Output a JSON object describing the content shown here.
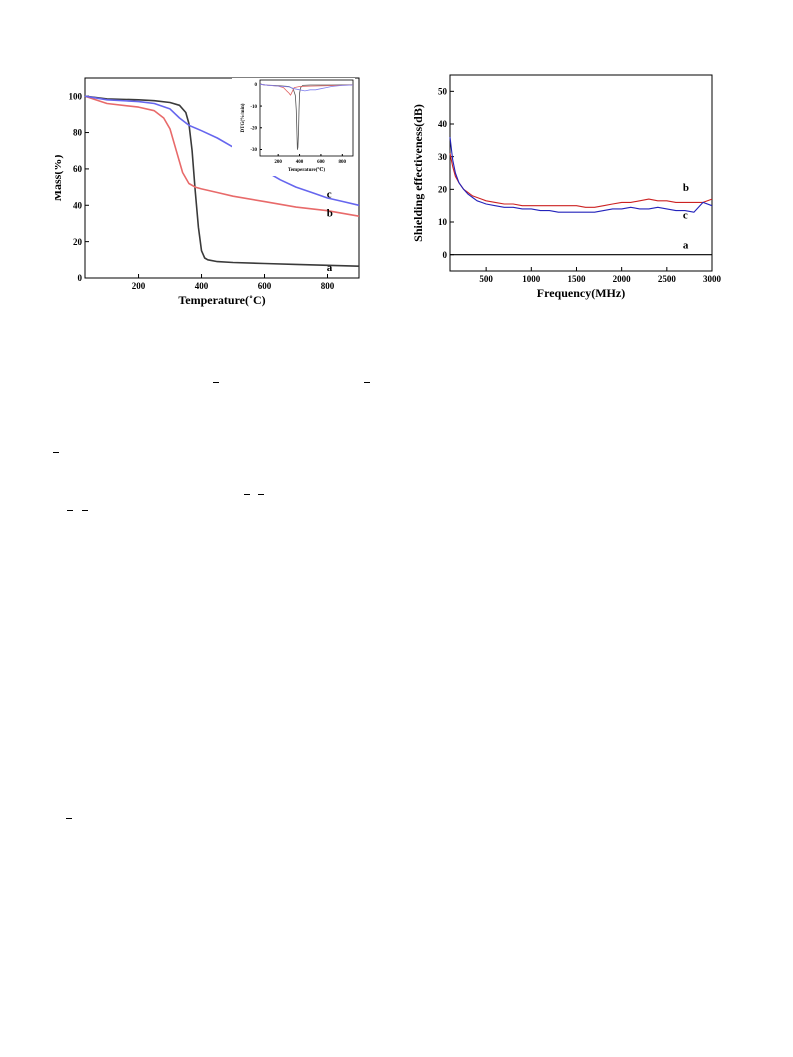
{
  "chart_data": [
    {
      "type": "line",
      "xlabel": "Temperature(˚C)",
      "ylabel": "Mass(%)",
      "xlim": [
        30,
        900
      ],
      "ylim": [
        0,
        110
      ],
      "xticks": [
        200,
        400,
        600,
        800
      ],
      "yticks": [
        0,
        20,
        40,
        60,
        80,
        100
      ],
      "grid": false,
      "series": [
        {
          "name": "a",
          "color": "#3a3a3a",
          "x": [
            30,
            100,
            200,
            250,
            300,
            330,
            350,
            360,
            370,
            380,
            390,
            400,
            410,
            420,
            450,
            500,
            600,
            700,
            800,
            900
          ],
          "y": [
            100,
            98.5,
            98,
            97.5,
            96.5,
            95,
            91,
            85,
            70,
            48,
            28,
            15,
            11,
            10,
            9,
            8.5,
            8,
            7.5,
            7,
            6.5
          ]
        },
        {
          "name": "b",
          "color": "#e86a6a",
          "x": [
            30,
            100,
            200,
            250,
            280,
            300,
            320,
            340,
            360,
            380,
            400,
            450,
            500,
            600,
            700,
            800,
            900
          ],
          "y": [
            100,
            96,
            94,
            92,
            88,
            82,
            70,
            58,
            52,
            50,
            49,
            47,
            45,
            42,
            39,
            37,
            34
          ]
        },
        {
          "name": "c",
          "color": "#6666ee",
          "x": [
            30,
            100,
            200,
            250,
            300,
            330,
            360,
            400,
            450,
            500,
            550,
            600,
            650,
            700,
            750,
            800,
            850,
            900
          ],
          "y": [
            100,
            98,
            97,
            96,
            93,
            88,
            84,
            81,
            77,
            72,
            65,
            59,
            54,
            50,
            47,
            44,
            42,
            40
          ]
        }
      ],
      "inset": {
        "type": "line",
        "xlabel": "Temperature(℃)",
        "ylabel": "DTG(%/min)",
        "xlim": [
          30,
          900
        ],
        "ylim": [
          -33,
          2
        ],
        "xticks": [
          200,
          400,
          600,
          800
        ],
        "yticks": [
          0,
          -10,
          -20,
          -30
        ],
        "series": [
          {
            "name": "a",
            "color": "#555555",
            "x": [
              30,
              100,
              200,
              300,
              340,
              360,
              370,
              375,
              380,
              385,
              390,
              395,
              400,
              410,
              430,
              500,
              700,
              900
            ],
            "y": [
              0,
              -0.4,
              -0.6,
              -1,
              -2,
              -5,
              -12,
              -22,
              -30,
              -29,
              -22,
              -12,
              -4,
              -1.5,
              -0.5,
              -0.3,
              -0.3,
              -0.2
            ]
          },
          {
            "name": "b",
            "color": "#e06060",
            "x": [
              30,
              100,
              200,
              250,
              280,
              300,
              315,
              330,
              350,
              400,
              500,
              700,
              900
            ],
            "y": [
              0,
              -0.4,
              -0.8,
              -1.5,
              -3,
              -4,
              -5,
              -3.5,
              -1.5,
              -1,
              -0.8,
              -0.6,
              -0.3
            ]
          },
          {
            "name": "c",
            "color": "#8080ee",
            "x": [
              30,
              100,
              200,
              300,
              350,
              400,
              450,
              500,
              550,
              600,
              650,
              700,
              800,
              900
            ],
            "y": [
              0,
              -0.4,
              -0.8,
              -1.2,
              -2,
              -2.5,
              -3,
              -2.5,
              -2.5,
              -2,
              -1.5,
              -1,
              -0.5,
              -0.3
            ]
          }
        ]
      }
    },
    {
      "type": "line",
      "xlabel": "Frequency(MHz)",
      "ylabel": "Shielding effectiveness(dB)",
      "xlim": [
        100,
        3000
      ],
      "ylim": [
        -5,
        55
      ],
      "xticks": [
        500,
        1000,
        1500,
        2000,
        2500,
        3000
      ],
      "yticks": [
        0,
        10,
        20,
        30,
        40,
        50
      ],
      "grid": false,
      "series": [
        {
          "name": "a",
          "color": "#000000",
          "x": [
            100,
            3000
          ],
          "y": [
            0,
            0
          ]
        },
        {
          "name": "b",
          "color": "#cc2222",
          "x": [
            100,
            130,
            160,
            200,
            250,
            300,
            350,
            400,
            450,
            500,
            600,
            700,
            800,
            900,
            1000,
            1100,
            1200,
            1300,
            1400,
            1500,
            1600,
            1700,
            1800,
            1900,
            2000,
            2100,
            2200,
            2300,
            2400,
            2500,
            2600,
            2700,
            2800,
            2900,
            3000
          ],
          "y": [
            31,
            27,
            24,
            22,
            20,
            19,
            18,
            17.5,
            17,
            16.5,
            16,
            15.5,
            15.5,
            15,
            15,
            15,
            15,
            15,
            15,
            15,
            14.5,
            14.5,
            15,
            15.5,
            16,
            16,
            16.5,
            17,
            16.5,
            16.5,
            16,
            16,
            16,
            16,
            17
          ]
        },
        {
          "name": "c",
          "color": "#2222bb",
          "x": [
            100,
            130,
            160,
            200,
            250,
            300,
            350,
            400,
            450,
            500,
            600,
            700,
            800,
            900,
            1000,
            1100,
            1200,
            1300,
            1400,
            1500,
            1600,
            1700,
            1800,
            1900,
            2000,
            2100,
            2200,
            2300,
            2400,
            2500,
            2600,
            2700,
            2800,
            2900,
            3000
          ],
          "y": [
            36,
            29,
            25,
            22,
            20,
            18.5,
            17.5,
            16.5,
            16,
            15.5,
            15,
            14.5,
            14.5,
            14,
            14,
            13.5,
            13.5,
            13,
            13,
            13,
            13,
            13,
            13.5,
            14,
            14,
            14.5,
            14,
            14,
            14.5,
            14,
            13.5,
            13.5,
            13,
            16,
            15
          ]
        }
      ]
    }
  ]
}
